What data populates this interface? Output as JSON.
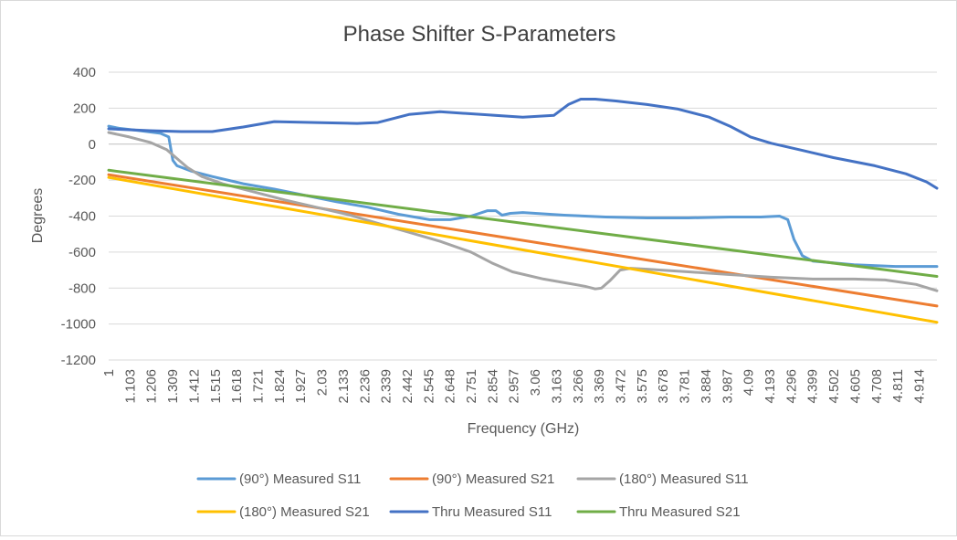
{
  "chart_data": {
    "type": "line",
    "title": "Phase Shifter S-Parameters",
    "xlabel": "Frequency (GHz)",
    "ylabel": "Degrees",
    "ylim": [
      -1200,
      400
    ],
    "xlim": [
      1,
      5
    ],
    "y_ticks": [
      "400",
      "200",
      "0",
      "-200",
      "-400",
      "-600",
      "-800",
      "-1000",
      "-1200"
    ],
    "x_ticks": [
      "1",
      "1.103",
      "1.206",
      "1.309",
      "1.412",
      "1.515",
      "1.618",
      "1.721",
      "1.824",
      "1.927",
      "2.03",
      "2.133",
      "2.236",
      "2.339",
      "2.442",
      "2.545",
      "2.648",
      "2.751",
      "2.854",
      "2.957",
      "3.06",
      "3.163",
      "3.266",
      "3.369",
      "3.472",
      "3.575",
      "3.678",
      "3.781",
      "3.884",
      "3.987",
      "4.09",
      "4.193",
      "4.296",
      "4.399",
      "4.502",
      "4.605",
      "4.708",
      "4.811",
      "4.914"
    ],
    "grid": "horizontal",
    "legend_position": "bottom",
    "series": [
      {
        "name": "(90°) Measured S11",
        "color": "#5b9bd5",
        "x": [
          1.0,
          1.05,
          1.15,
          1.25,
          1.29,
          1.31,
          1.33,
          1.4,
          1.5,
          1.65,
          1.8,
          1.95,
          2.1,
          2.25,
          2.4,
          2.55,
          2.65,
          2.75,
          2.83,
          2.87,
          2.9,
          2.94,
          3.0,
          3.2,
          3.4,
          3.6,
          3.8,
          4.0,
          4.15,
          4.24,
          4.28,
          4.31,
          4.35,
          4.4,
          4.6,
          4.8,
          5.0
        ],
        "y": [
          100,
          88,
          75,
          60,
          40,
          -90,
          -120,
          -150,
          -180,
          -220,
          -250,
          -285,
          -320,
          -350,
          -390,
          -420,
          -420,
          -400,
          -370,
          -370,
          -395,
          -385,
          -380,
          -395,
          -405,
          -410,
          -410,
          -405,
          -405,
          -400,
          -420,
          -530,
          -620,
          -650,
          -670,
          -680,
          -680
        ]
      },
      {
        "name": "(90°) Measured S21",
        "color": "#ed7d31",
        "x": [
          1.0,
          5.0
        ],
        "y": [
          -170,
          -900
        ]
      },
      {
        "name": "(180°) Measured S11",
        "color": "#a5a5a5",
        "x": [
          1.0,
          1.1,
          1.2,
          1.28,
          1.33,
          1.38,
          1.45,
          1.55,
          1.7,
          1.85,
          2.0,
          2.15,
          2.3,
          2.45,
          2.6,
          2.75,
          2.85,
          2.95,
          3.1,
          3.3,
          3.35,
          3.38,
          3.42,
          3.47,
          3.52,
          3.6,
          3.8,
          4.0,
          4.2,
          4.4,
          4.6,
          4.75,
          4.9,
          5.0
        ],
        "y": [
          65,
          40,
          10,
          -30,
          -80,
          -130,
          -180,
          -220,
          -265,
          -310,
          -350,
          -390,
          -440,
          -490,
          -540,
          -600,
          -660,
          -710,
          -750,
          -790,
          -805,
          -800,
          -760,
          -700,
          -690,
          -695,
          -710,
          -725,
          -740,
          -750,
          -750,
          -755,
          -780,
          -815
        ]
      },
      {
        "name": "(180°) Measured S21",
        "color": "#ffc000",
        "x": [
          1.0,
          5.0
        ],
        "y": [
          -185,
          -990
        ]
      },
      {
        "name": "Thru Measured S11",
        "color": "#4472c4",
        "x": [
          1.0,
          1.2,
          1.35,
          1.5,
          1.65,
          1.8,
          2.0,
          2.2,
          2.3,
          2.45,
          2.6,
          2.8,
          3.0,
          3.15,
          3.22,
          3.28,
          3.35,
          3.45,
          3.6,
          3.75,
          3.9,
          4.0,
          4.05,
          4.1,
          4.2,
          4.35,
          4.5,
          4.7,
          4.85,
          4.95,
          5.0
        ],
        "y": [
          85,
          75,
          70,
          70,
          95,
          125,
          120,
          115,
          120,
          165,
          180,
          165,
          150,
          160,
          220,
          250,
          250,
          240,
          220,
          195,
          150,
          100,
          70,
          40,
          5,
          -35,
          -75,
          -120,
          -165,
          -210,
          -245
        ]
      },
      {
        "name": "Thru Measured S21",
        "color": "#70ad47",
        "x": [
          1.0,
          5.0
        ],
        "y": [
          -145,
          -735
        ]
      }
    ]
  }
}
